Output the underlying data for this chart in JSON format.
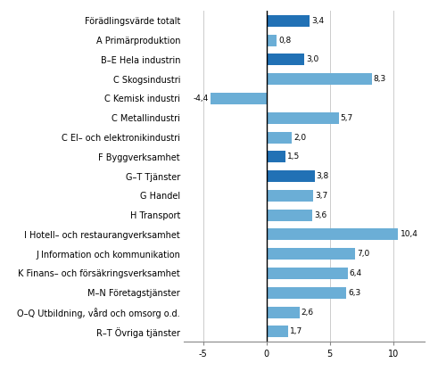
{
  "categories": [
    "Förädlingsvärde totalt",
    "A Primärproduktion",
    "B–E Hela industrin",
    "C Skogsindustri",
    "C Kemisk industri",
    "C Metallindustri",
    "C El– och elektronikindustri",
    "F Byggverksamhet",
    "G–T Tjänster",
    "G Handel",
    "H Transport",
    "I Hotell– och restaurangverksamhet",
    "J Information och kommunikation",
    "K Finans– och försäkringsverksamhet",
    "M–N Företagstjänster",
    "O–Q Utbildning, vård och omsorg o.d.",
    "R–T Övriga tjänster"
  ],
  "values": [
    3.4,
    0.8,
    3.0,
    8.3,
    -4.4,
    5.7,
    2.0,
    1.5,
    3.8,
    3.7,
    3.6,
    10.4,
    7.0,
    6.4,
    6.3,
    2.6,
    1.7
  ],
  "colors": [
    "#2171b5",
    "#6baed6",
    "#2171b5",
    "#6baed6",
    "#6baed6",
    "#6baed6",
    "#6baed6",
    "#2171b5",
    "#2171b5",
    "#6baed6",
    "#6baed6",
    "#6baed6",
    "#6baed6",
    "#6baed6",
    "#6baed6",
    "#6baed6",
    "#6baed6"
  ],
  "xlim": [
    -6.5,
    12.5
  ],
  "xticks": [
    -5,
    0,
    5,
    10
  ],
  "bar_height": 0.6,
  "value_fontsize": 6.5,
  "label_fontsize": 7.0,
  "background_color": "#ffffff",
  "figsize": [
    4.91,
    4.16
  ],
  "dpi": 100
}
